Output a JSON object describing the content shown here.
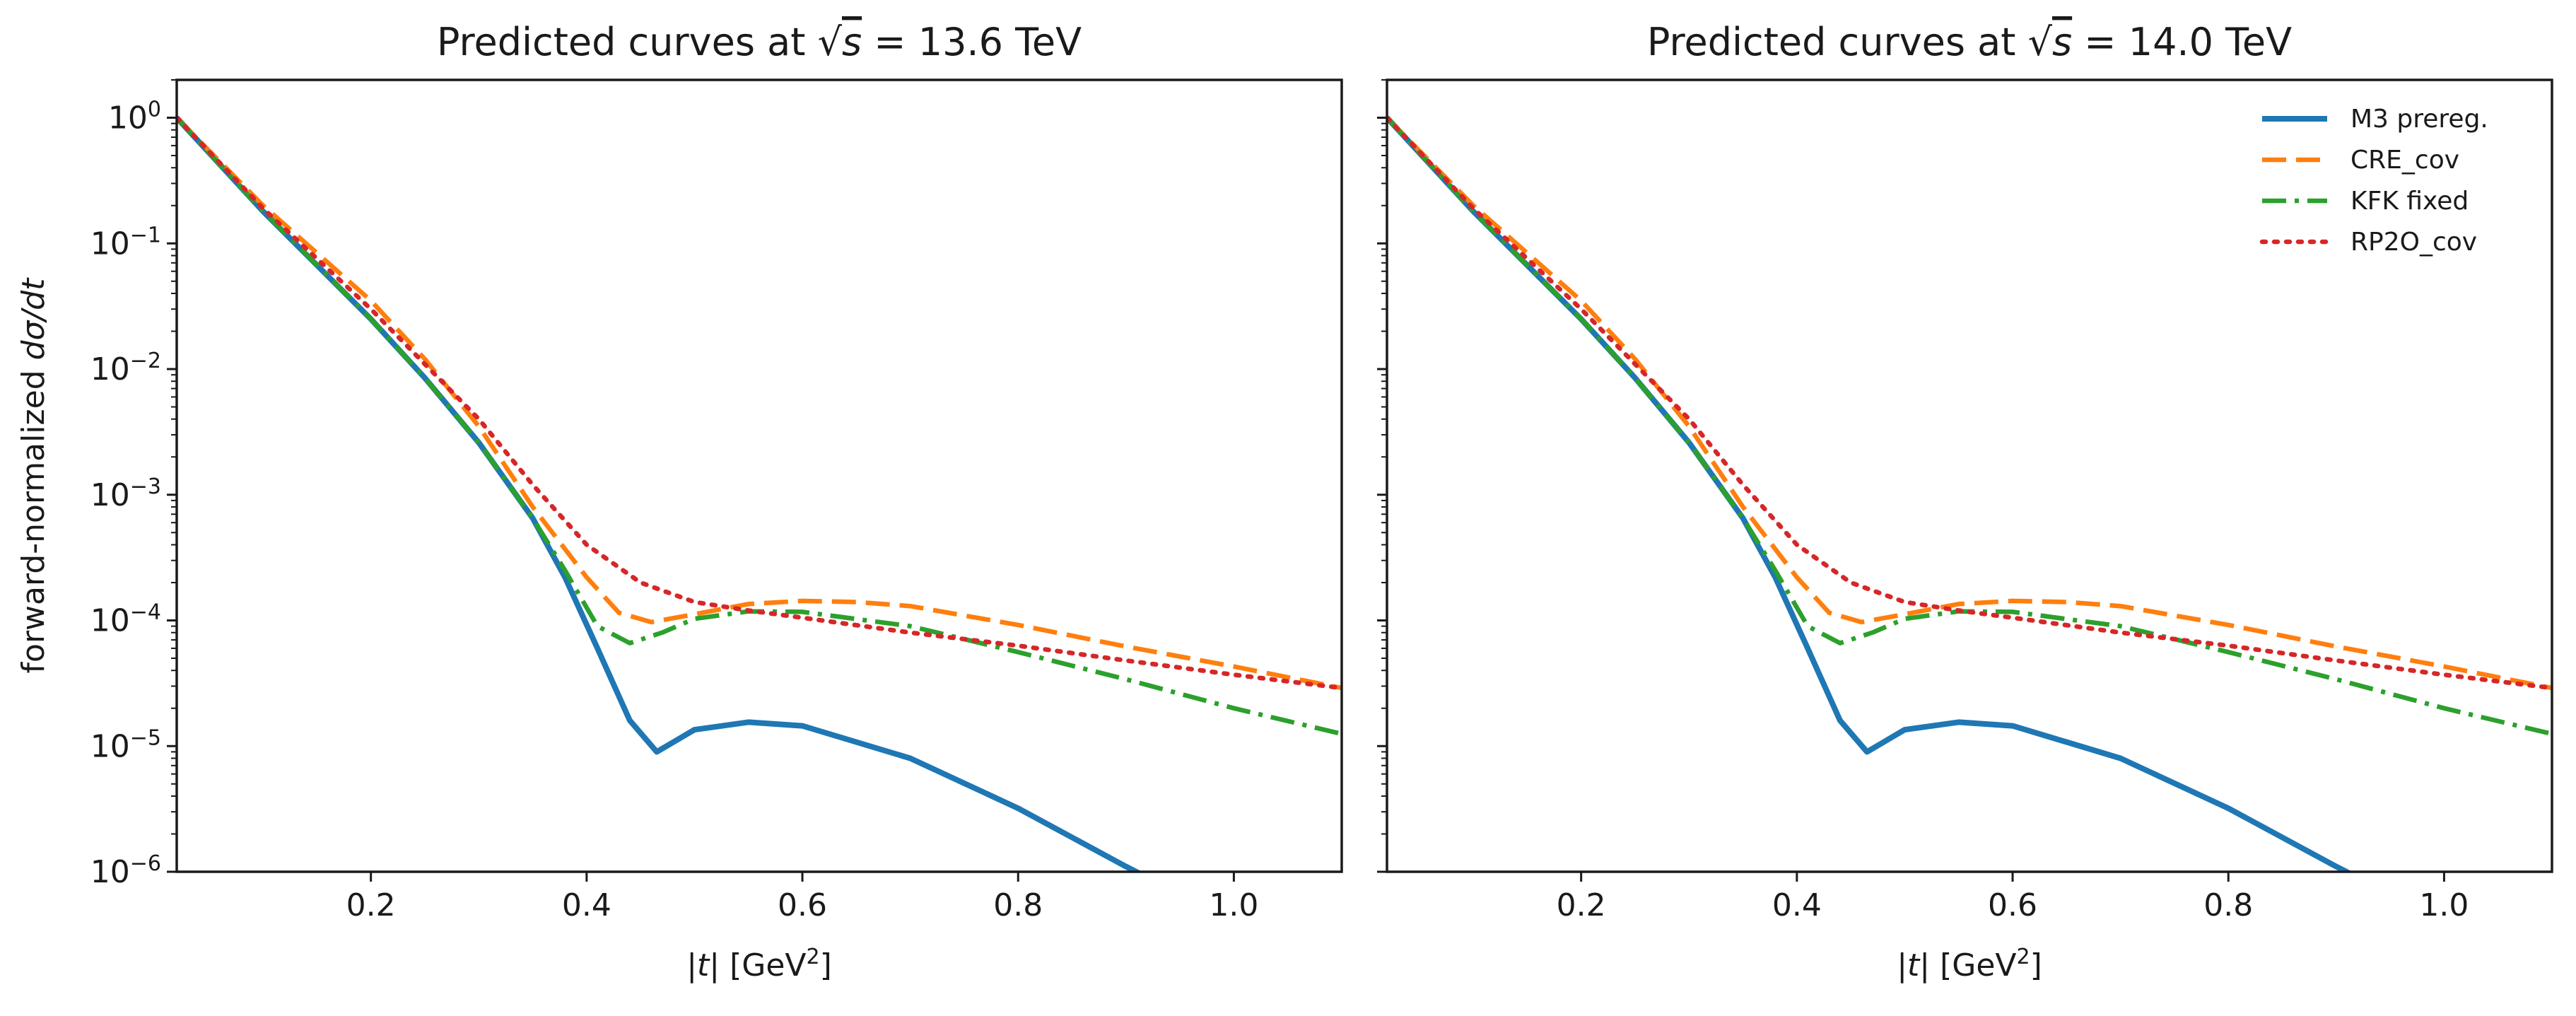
{
  "chart_data": [
    {
      "type": "line",
      "title": "Predicted curves at √s = 13.6 TeV",
      "title_parts": {
        "prefix": "Predicted curves at ",
        "symbol": "s",
        "energy": "13.6",
        "unit": "TeV"
      },
      "xlabel": "|t| [GeV²]",
      "xlabel_parts": {
        "var": "t",
        "unit": "[GeV",
        "exp": "2",
        "close": "]"
      },
      "ylabel": "forward-normalized dσ/dt",
      "ylabel_parts": {
        "text": "forward-normalized ",
        "math": "dσ/dt"
      },
      "y_scale": "log",
      "xlim": [
        0.02,
        1.1
      ],
      "ylim": [
        1e-06,
        2
      ],
      "xticks": [
        "0.2",
        "0.4",
        "0.6",
        "0.8",
        "1.0"
      ],
      "yticks": [
        "10⁻⁶",
        "10⁻⁵",
        "10⁻⁴",
        "10⁻³",
        "10⁻²",
        "10⁻¹",
        "10⁰"
      ],
      "legend": null,
      "series": [
        {
          "name": "M3 prereg.",
          "color": "#1f77b4",
          "style": "solid",
          "x": [
            0.02,
            0.1,
            0.2,
            0.25,
            0.3,
            0.35,
            0.38,
            0.41,
            0.44,
            0.465,
            0.5,
            0.55,
            0.6,
            0.7,
            0.8,
            0.9,
            0.92
          ],
          "y": [
            1.0,
            0.18,
            0.025,
            0.0085,
            0.0026,
            0.00065,
            0.00022,
            6e-05,
            1.6e-05,
            9e-06,
            1.35e-05,
            1.55e-05,
            1.45e-05,
            8e-06,
            3.2e-06,
            1.1e-06,
            9e-07
          ]
        },
        {
          "name": "CRE_cov",
          "color": "#ff7f0e",
          "style": "dashed",
          "x": [
            0.02,
            0.1,
            0.2,
            0.25,
            0.3,
            0.35,
            0.4,
            0.43,
            0.46,
            0.5,
            0.55,
            0.6,
            0.65,
            0.7,
            0.8,
            0.9,
            1.0,
            1.1
          ],
          "y": [
            1.0,
            0.2,
            0.035,
            0.012,
            0.0035,
            0.0008,
            0.00022,
            0.000115,
            9.7e-05,
            0.000112,
            0.000135,
            0.000143,
            0.00014,
            0.00013,
            9.2e-05,
            6.2e-05,
            4.3e-05,
            2.9e-05
          ]
        },
        {
          "name": "KFK fixed",
          "color": "#2ca02c",
          "style": "dashdot",
          "x": [
            0.02,
            0.1,
            0.2,
            0.25,
            0.3,
            0.35,
            0.38,
            0.41,
            0.44,
            0.47,
            0.5,
            0.55,
            0.6,
            0.7,
            0.8,
            0.9,
            1.0,
            1.1
          ],
          "y": [
            1.0,
            0.18,
            0.025,
            0.0085,
            0.0026,
            0.00065,
            0.00025,
            9e-05,
            6.6e-05,
            8e-05,
            0.000103,
            0.000118,
            0.000117,
            9e-05,
            5.6e-05,
            3.4e-05,
            2e-05,
            1.25e-05
          ]
        },
        {
          "name": "RP2O_cov",
          "color": "#d62728",
          "style": "dotted",
          "x": [
            0.02,
            0.1,
            0.2,
            0.3,
            0.35,
            0.4,
            0.45,
            0.5,
            0.55,
            0.6,
            0.7,
            0.8,
            0.9,
            1.0,
            1.1
          ],
          "y": [
            1.0,
            0.19,
            0.03,
            0.004,
            0.0012,
            0.0004,
            0.0002,
            0.00014,
            0.00012,
            0.000105,
            8e-05,
            6.3e-05,
            4.8e-05,
            3.7e-05,
            2.9e-05
          ]
        }
      ]
    },
    {
      "type": "line",
      "title": "Predicted curves at √s = 14.0 TeV",
      "title_parts": {
        "prefix": "Predicted curves at ",
        "symbol": "s",
        "energy": "14.0",
        "unit": "TeV"
      },
      "xlabel": "|t| [GeV²]",
      "xlabel_parts": {
        "var": "t",
        "unit": "[GeV",
        "exp": "2",
        "close": "]"
      },
      "ylabel": "",
      "y_scale": "log",
      "xlim": [
        0.02,
        1.1
      ],
      "ylim": [
        1e-06,
        2
      ],
      "xticks": [
        "0.2",
        "0.4",
        "0.6",
        "0.8",
        "1.0"
      ],
      "yticks": [],
      "legend": {
        "placement": "top-right",
        "entries": [
          "M3 prereg.",
          "CRE_cov",
          "KFK fixed",
          "RP2O_cov"
        ]
      },
      "series": [
        {
          "name": "M3 prereg.",
          "color": "#1f77b4",
          "style": "solid",
          "x": [
            0.02,
            0.1,
            0.2,
            0.25,
            0.3,
            0.35,
            0.38,
            0.41,
            0.44,
            0.465,
            0.5,
            0.55,
            0.6,
            0.7,
            0.8,
            0.9,
            0.92
          ],
          "y": [
            1.0,
            0.18,
            0.025,
            0.0085,
            0.0026,
            0.00065,
            0.00022,
            6e-05,
            1.6e-05,
            9e-06,
            1.35e-05,
            1.55e-05,
            1.45e-05,
            8e-06,
            3.2e-06,
            1.1e-06,
            9e-07
          ]
        },
        {
          "name": "CRE_cov",
          "color": "#ff7f0e",
          "style": "dashed",
          "x": [
            0.02,
            0.1,
            0.2,
            0.25,
            0.3,
            0.35,
            0.4,
            0.43,
            0.46,
            0.5,
            0.55,
            0.6,
            0.65,
            0.7,
            0.8,
            0.9,
            1.0,
            1.1
          ],
          "y": [
            1.0,
            0.2,
            0.035,
            0.012,
            0.0035,
            0.0008,
            0.00022,
            0.000115,
            9.7e-05,
            0.000112,
            0.000135,
            0.000143,
            0.00014,
            0.00013,
            9.2e-05,
            6.2e-05,
            4.3e-05,
            2.9e-05
          ]
        },
        {
          "name": "KFK fixed",
          "color": "#2ca02c",
          "style": "dashdot",
          "x": [
            0.02,
            0.1,
            0.2,
            0.25,
            0.3,
            0.35,
            0.38,
            0.41,
            0.44,
            0.47,
            0.5,
            0.55,
            0.6,
            0.7,
            0.8,
            0.9,
            1.0,
            1.1
          ],
          "y": [
            1.0,
            0.18,
            0.025,
            0.0085,
            0.0026,
            0.00065,
            0.00025,
            9e-05,
            6.6e-05,
            8e-05,
            0.000103,
            0.000118,
            0.000117,
            9e-05,
            5.6e-05,
            3.4e-05,
            2e-05,
            1.25e-05
          ]
        },
        {
          "name": "RP2O_cov",
          "color": "#d62728",
          "style": "dotted",
          "x": [
            0.02,
            0.1,
            0.2,
            0.3,
            0.35,
            0.4,
            0.45,
            0.5,
            0.55,
            0.6,
            0.7,
            0.8,
            0.9,
            1.0,
            1.1
          ],
          "y": [
            1.0,
            0.19,
            0.03,
            0.004,
            0.0012,
            0.0004,
            0.0002,
            0.00014,
            0.00012,
            0.000105,
            8e-05,
            6.3e-05,
            4.8e-05,
            3.7e-05,
            2.9e-05
          ]
        }
      ]
    }
  ]
}
